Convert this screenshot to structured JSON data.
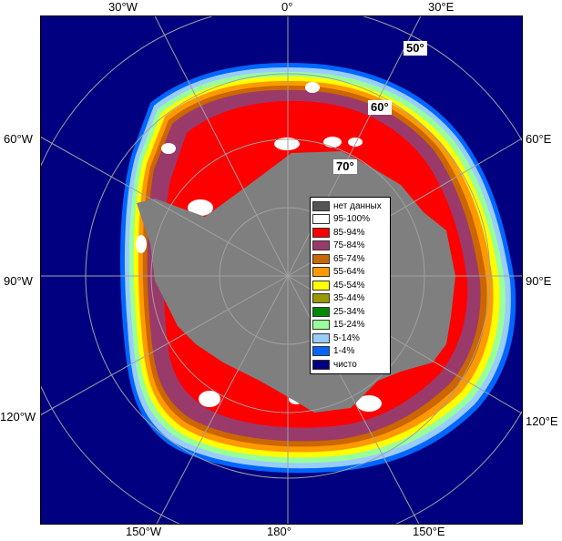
{
  "map": {
    "title": "",
    "longitude_labels": {
      "top": [
        "30°W",
        "0°",
        "30°E"
      ],
      "left": [
        "60°W",
        "90°W",
        "120°W"
      ],
      "right": [
        "60°E",
        "90°E",
        "120°E"
      ],
      "bottom": [
        "150°W",
        "180°",
        "150°E"
      ]
    },
    "latitude_labels": [
      "50°",
      "60°",
      "70°"
    ],
    "colors": {
      "ocean": "#000080",
      "land": "#7f7f7f",
      "no_data": "#555555",
      "ice_95_100": "#ffffff",
      "ice_85_94": "#ff0000",
      "ice_75_84": "#9a3a6a",
      "ice_65_74": "#cc6600",
      "ice_55_64": "#ff9900",
      "ice_45_54": "#ffff00",
      "ice_35_44": "#999900",
      "ice_25_34": "#008800",
      "ice_15_24": "#99ff99",
      "ice_5_14": "#99ccff",
      "ice_1_4": "#0066ff",
      "clear": "#000080"
    }
  },
  "legend": [
    {
      "label": "нет данных",
      "color": "#555555"
    },
    {
      "label": "95-100%",
      "color": "#ffffff"
    },
    {
      "label": "85-94%",
      "color": "#ff0000"
    },
    {
      "label": "75-84%",
      "color": "#9a3a6a"
    },
    {
      "label": "65-74%",
      "color": "#cc6600"
    },
    {
      "label": "55-64%",
      "color": "#ff9900"
    },
    {
      "label": "45-54%",
      "color": "#ffff00"
    },
    {
      "label": "35-44%",
      "color": "#999900"
    },
    {
      "label": "25-34%",
      "color": "#008800"
    },
    {
      "label": "15-24%",
      "color": "#99ff99"
    },
    {
      "label": "5-14%",
      "color": "#99ccff"
    },
    {
      "label": "1-4%",
      "color": "#0066ff"
    },
    {
      "label": "чисто",
      "color": "#000080"
    }
  ]
}
